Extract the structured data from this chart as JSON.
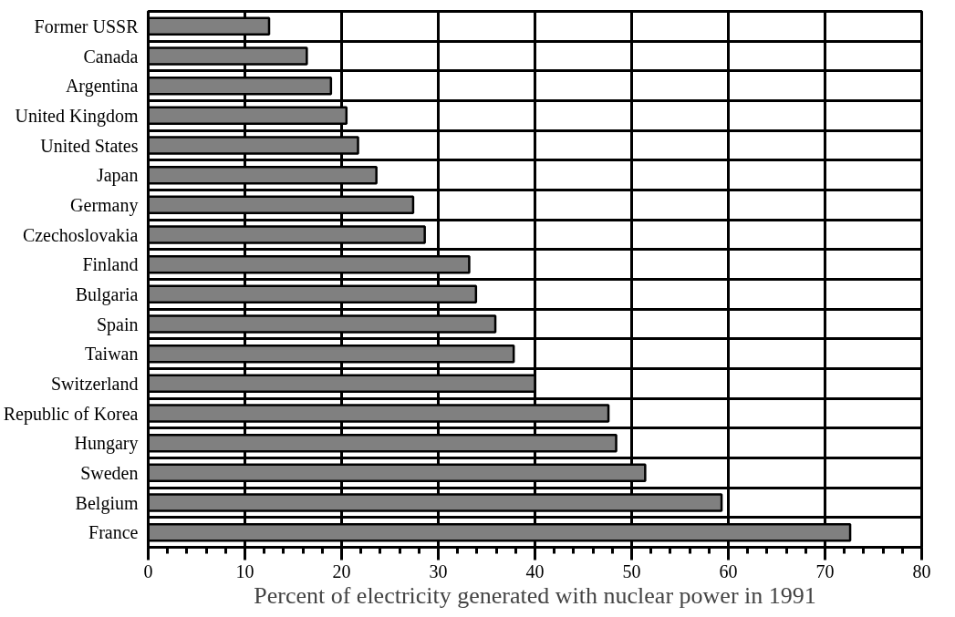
{
  "chart_data": {
    "type": "bar",
    "orientation": "horizontal",
    "xlabel": "Percent of electricity generated with nuclear power in 1991",
    "categories": [
      "Former USSR",
      "Canada",
      "Argentina",
      "United Kingdom",
      "United States",
      "Japan",
      "Germany",
      "Czechoslovakia",
      "Finland",
      "Bulgaria",
      "Spain",
      "Taiwan",
      "Switzerland",
      "Republic of Korea",
      "Hungary",
      "Sweden",
      "Belgium",
      "France"
    ],
    "values": [
      12.5,
      16.4,
      18.9,
      20.5,
      21.7,
      23.6,
      27.4,
      28.6,
      33.2,
      33.9,
      35.9,
      37.8,
      40.0,
      47.6,
      48.4,
      51.4,
      59.3,
      72.6
    ],
    "color": "#808080",
    "xlim": [
      0,
      80
    ],
    "xticks": [
      0,
      {
        "value": 2,
        "label": null
      },
      {
        "value": 4,
        "label": null
      },
      {
        "value": 6,
        "label": null
      },
      {
        "value": 8,
        "label": null
      },
      10,
      {
        "value": 12,
        "label": null
      },
      {
        "value": 14,
        "label": null
      },
      {
        "value": 16,
        "label": null
      },
      {
        "value": 18,
        "label": null
      },
      20,
      {
        "value": 22,
        "label": null
      },
      {
        "value": 24,
        "label": null
      },
      {
        "value": 26,
        "label": null
      },
      {
        "value": 28,
        "label": null
      },
      30,
      {
        "value": 32,
        "label": null
      },
      {
        "value": 34,
        "label": null
      },
      {
        "value": 36,
        "label": null
      },
      {
        "value": 38,
        "label": null
      },
      40,
      {
        "value": 42,
        "label": null
      },
      {
        "value": 44,
        "label": null
      },
      {
        "value": 46,
        "label": null
      },
      {
        "value": 48,
        "label": null
      },
      50,
      {
        "value": 52,
        "label": null
      },
      {
        "value": 54,
        "label": null
      },
      {
        "value": 56,
        "label": null
      },
      {
        "value": 58,
        "label": null
      },
      60,
      {
        "value": 62,
        "label": null
      },
      {
        "value": 64,
        "label": null
      },
      {
        "value": 66,
        "label": null
      },
      {
        "value": 68,
        "label": null
      },
      70,
      {
        "value": 72,
        "label": null
      },
      {
        "value": 74,
        "label": null
      },
      {
        "value": 76,
        "label": null
      },
      {
        "value": 78,
        "label": null
      },
      80
    ],
    "grid": true
  }
}
